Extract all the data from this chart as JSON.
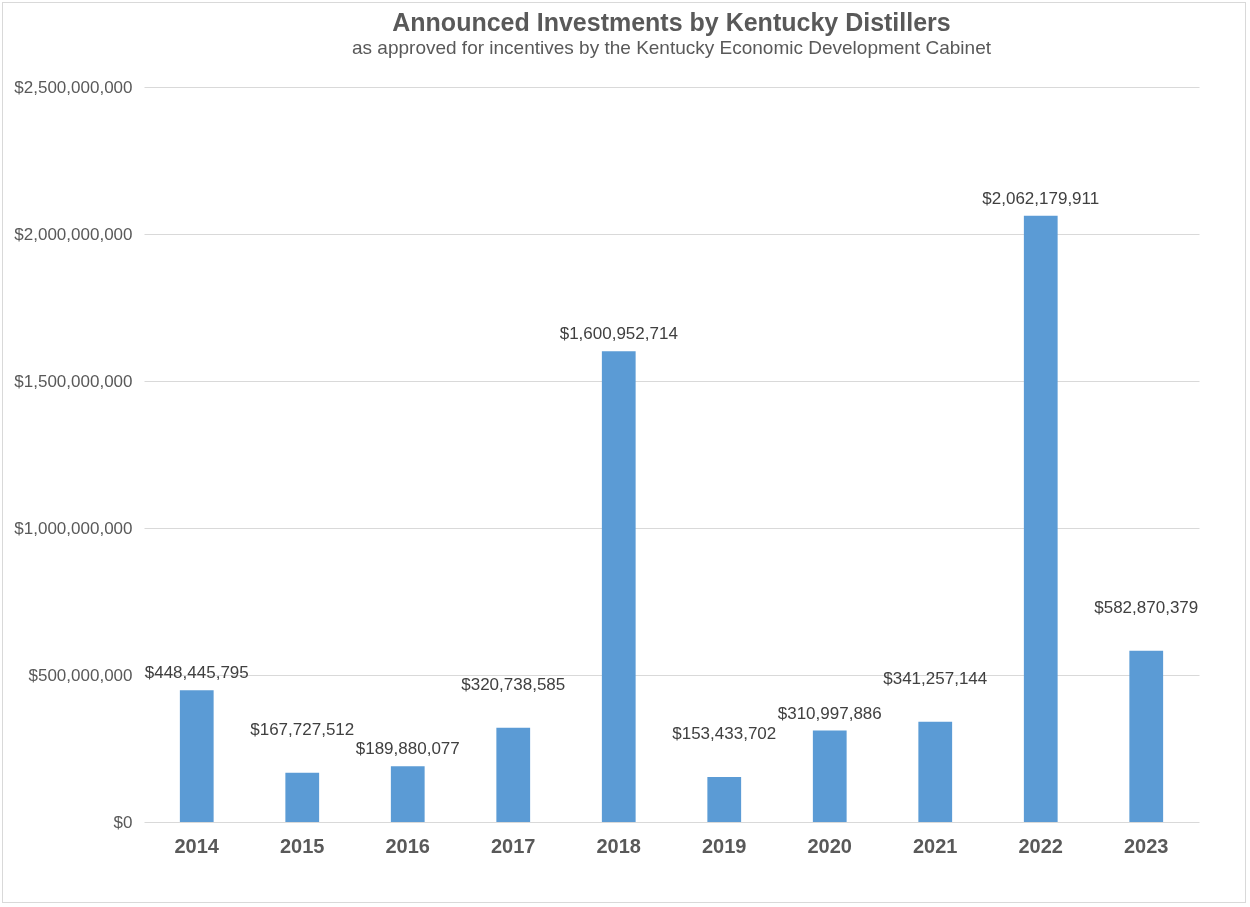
{
  "chart_data": {
    "type": "bar",
    "title": "Announced Investments by Kentucky Distillers",
    "subtitle": "as approved for incentives by the Kentucky Economic Development Cabinet",
    "categories": [
      "2014",
      "2015",
      "2016",
      "2017",
      "2018",
      "2019",
      "2020",
      "2021",
      "2022",
      "2023"
    ],
    "values": [
      448445795,
      167727512,
      189880077,
      320738585,
      1600952714,
      153433702,
      310997886,
      341257144,
      2062179911,
      582870379
    ],
    "value_labels": [
      "$448,445,795",
      "$167,727,512",
      "$189,880,077",
      "$320,738,585",
      "$1,600,952,714",
      "$153,433,702",
      "$310,997,886",
      "$341,257,144",
      "$2,062,179,911",
      "$582,870,379"
    ],
    "color": "#5b9bd5",
    "ylim": [
      0,
      2500000000
    ],
    "yticks": [
      {
        "value": 0,
        "label": "$0"
      },
      {
        "value": 500000000,
        "label": "$500,000,000"
      },
      {
        "value": 1000000000,
        "label": "$1,000,000,000"
      },
      {
        "value": 1500000000,
        "label": "$1,500,000,000"
      },
      {
        "value": 2000000000,
        "label": "$2,000,000,000"
      },
      {
        "value": 2500000000,
        "label": "$2,500,000,000"
      }
    ],
    "grid": "y"
  }
}
